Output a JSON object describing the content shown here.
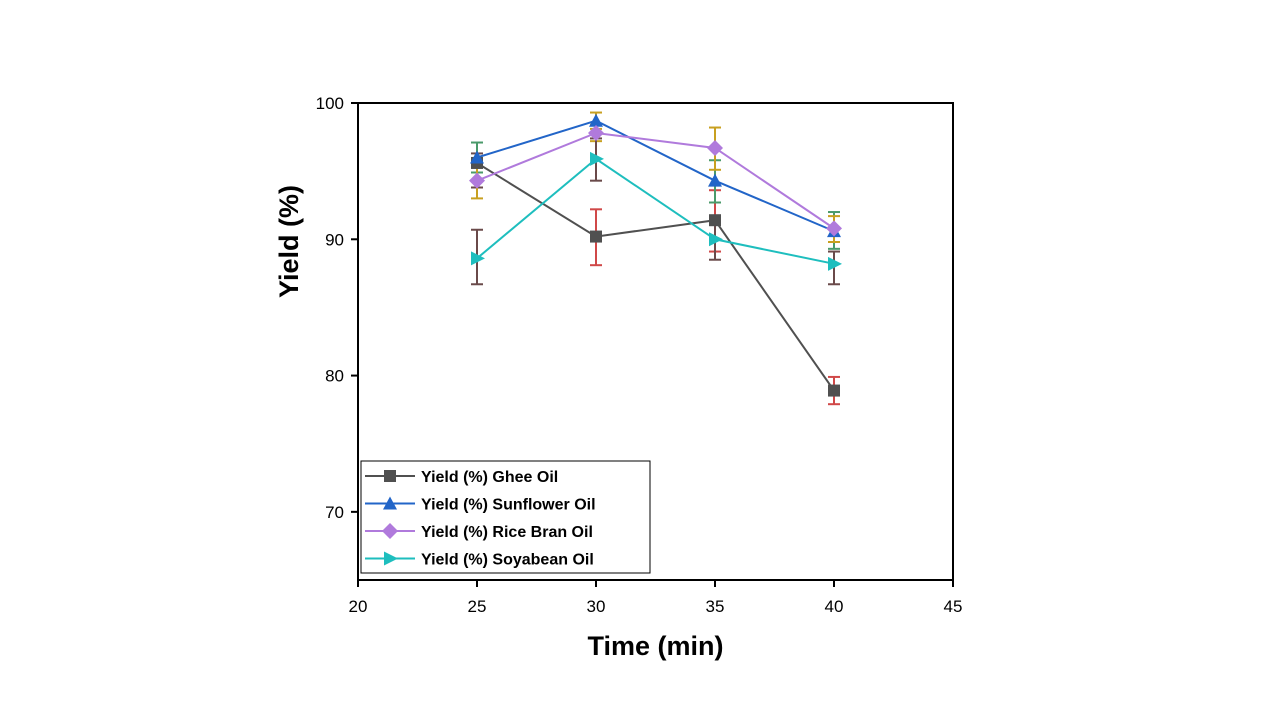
{
  "chart_data": {
    "type": "line",
    "title": "",
    "xlabel": "Time (min)",
    "ylabel": "Yield (%)",
    "xlim": [
      20,
      45
    ],
    "ylim": [
      65,
      100
    ],
    "xticks": [
      20,
      25,
      30,
      35,
      40,
      45
    ],
    "yticks": [
      70,
      80,
      90,
      100
    ],
    "xtick_labels": [
      "20",
      "25",
      "30",
      "35",
      "40",
      "45"
    ],
    "ytick_labels": [
      "70",
      "80",
      "90",
      "100"
    ],
    "grid": false,
    "legend_position": "bottom-left",
    "x": [
      25,
      30,
      35,
      40
    ],
    "series": [
      {
        "name": "Yield (%) Ghee Oil",
        "color": "#505050",
        "marker": "square",
        "values": [
          95.6,
          90.2,
          91.4,
          78.9
        ],
        "err_low": [
          93.8,
          88.1,
          89.1,
          77.9
        ],
        "err_high": [
          96.3,
          92.2,
          93.6,
          79.9
        ],
        "err_color": [
          "#6A4A4A",
          "#D04848",
          "#D04848",
          "#D04848"
        ]
      },
      {
        "name": "Yield (%) Sunflower Oil",
        "color": "#2265C8",
        "marker": "triangle-up",
        "values": [
          96.0,
          98.7,
          94.3,
          90.6
        ],
        "err_low": [
          94.9,
          98.1,
          92.7,
          89.3
        ],
        "err_high": [
          97.1,
          99.3,
          95.8,
          92.0
        ],
        "err_color": [
          "#4A9A6A",
          "#C8A020",
          "#4A9A6A",
          "#4A9A6A"
        ]
      },
      {
        "name": "Yield (%) Rice Bran Oil",
        "color": "#B07ADC",
        "marker": "diamond",
        "values": [
          94.3,
          97.8,
          96.7,
          90.8
        ],
        "err_low": [
          93.0,
          97.2,
          95.1,
          89.8
        ],
        "err_high": [
          95.5,
          98.4,
          98.2,
          91.7
        ],
        "err_color": [
          "#C8A020",
          "#C8A020",
          "#C8A020",
          "#C8A020"
        ]
      },
      {
        "name": "Yield (%) Soyabean Oil",
        "color": "#1EBEBE",
        "marker": "triangle-right",
        "values": [
          88.6,
          95.9,
          90.0,
          88.2
        ],
        "err_low": [
          86.7,
          94.3,
          88.5,
          86.7
        ],
        "err_high": [
          90.7,
          97.4,
          91.4,
          89.1
        ],
        "err_color": [
          "#6A4A4A",
          "#6A4A4A",
          "#6A4A4A",
          "#6A4A4A"
        ]
      }
    ]
  }
}
